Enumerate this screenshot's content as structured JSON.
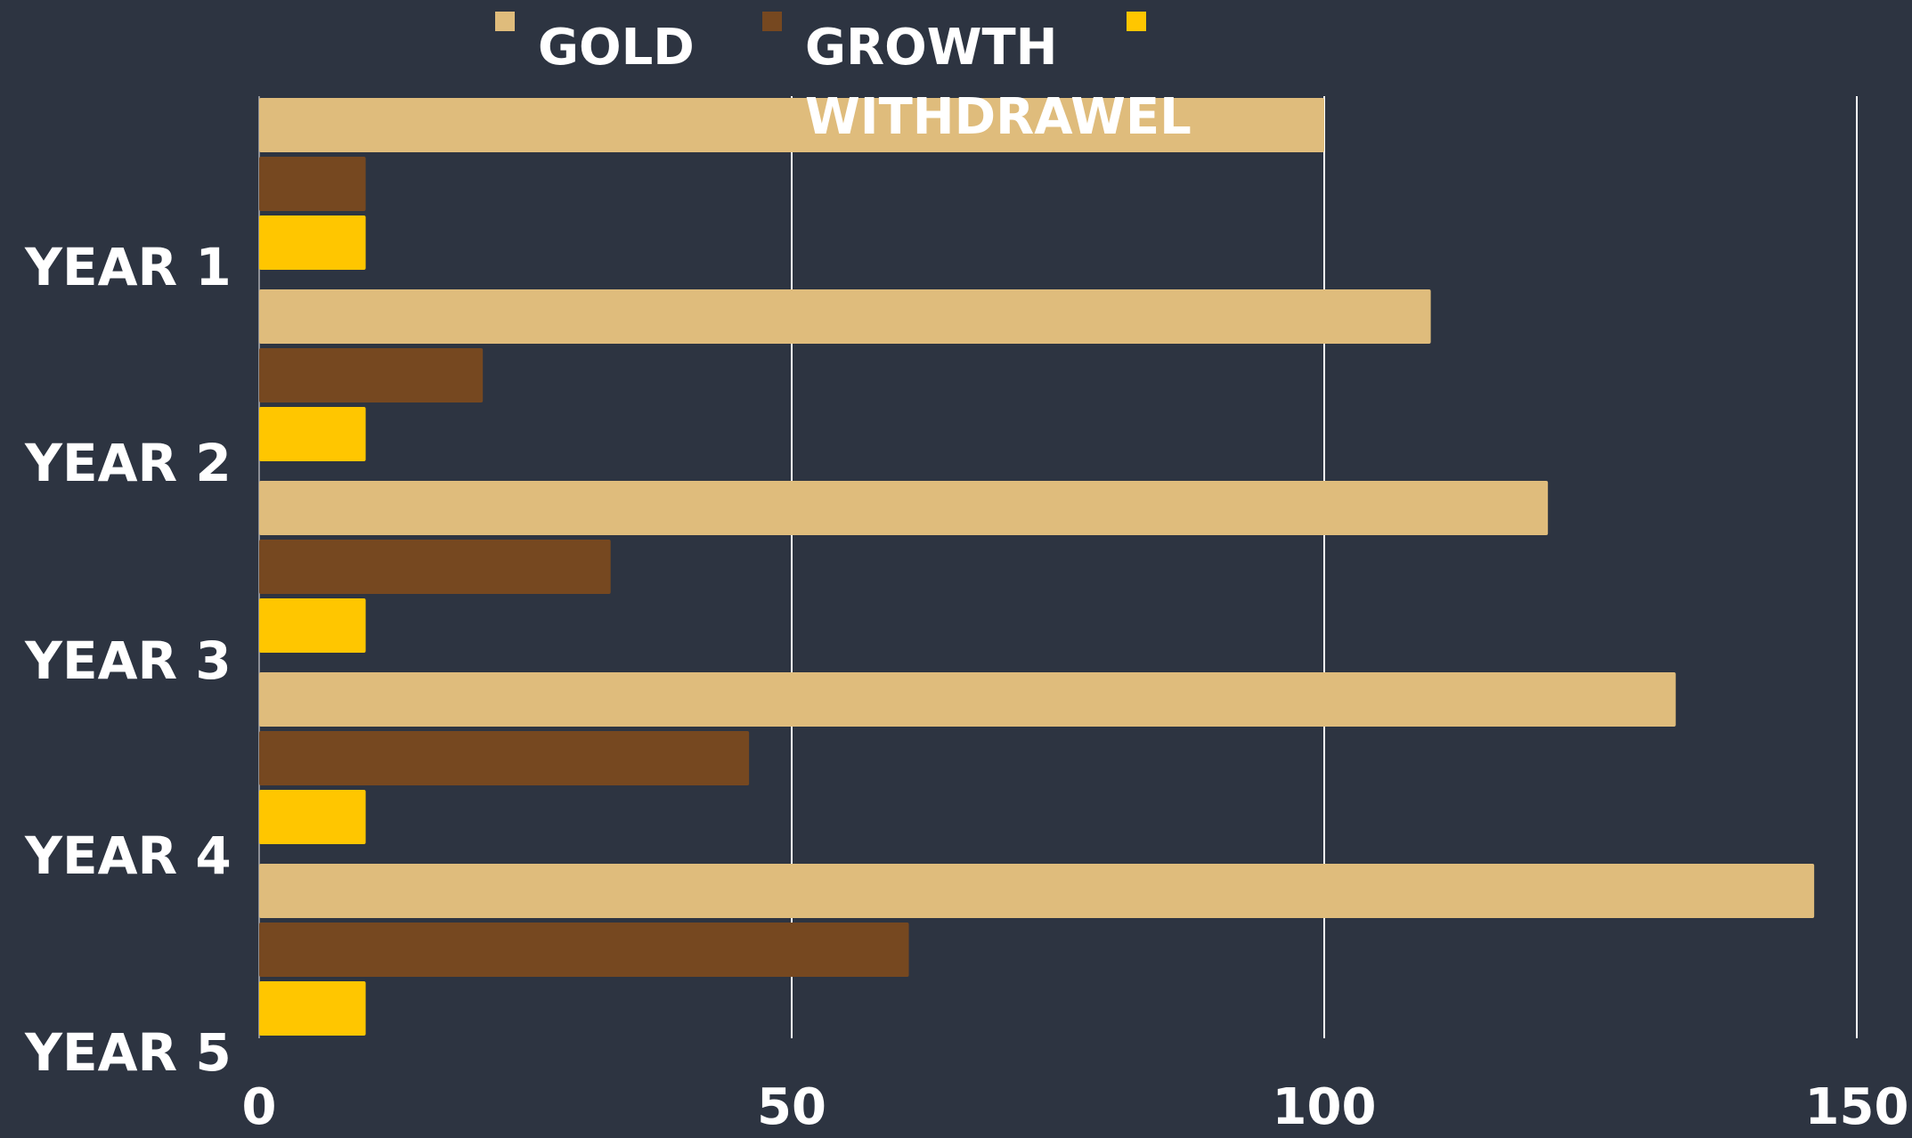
{
  "chart_data": {
    "type": "bar",
    "orientation": "horizontal",
    "categories": [
      "YEAR 1",
      "YEAR 2",
      "YEAR 3",
      "YEAR 4",
      "YEAR 5"
    ],
    "series": [
      {
        "name": "GOLD",
        "color": "#dfbc7c",
        "values": [
          100,
          110,
          121,
          133,
          146
        ]
      },
      {
        "name": "GROWTH",
        "color": "#764820",
        "values": [
          10,
          21,
          33,
          46,
          61
        ]
      },
      {
        "name": "WITHDRAWEL",
        "color": "#ffc600",
        "values": [
          10,
          10,
          10,
          10,
          10
        ]
      }
    ],
    "xlim": [
      0,
      150
    ],
    "xticks": [
      0,
      50,
      100,
      150
    ],
    "grid": "vertical",
    "legend": "top",
    "title": "",
    "xlabel": "",
    "ylabel": "",
    "background": "#2d3441",
    "gridline_color": "#ffffff",
    "text_color": "#ffffff"
  }
}
